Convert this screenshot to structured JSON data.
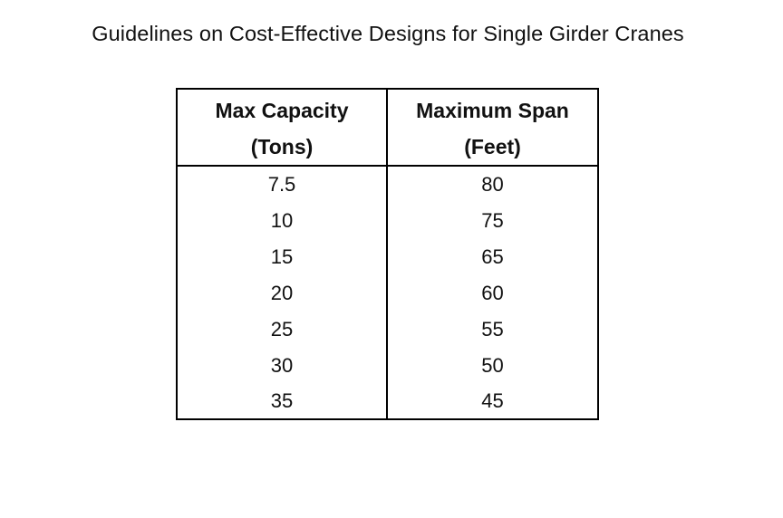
{
  "title": "Guidelines on Cost-Effective Designs for Single Girder Cranes",
  "table": {
    "headers": [
      [
        "Max Capacity",
        "(Tons)"
      ],
      [
        "Maximum Span",
        "(Feet)"
      ]
    ],
    "rows": [
      [
        "7.5",
        "80"
      ],
      [
        "10",
        "75"
      ],
      [
        "15",
        "65"
      ],
      [
        "20",
        "60"
      ],
      [
        "25",
        "55"
      ],
      [
        "30",
        "50"
      ],
      [
        "35",
        "45"
      ]
    ]
  }
}
